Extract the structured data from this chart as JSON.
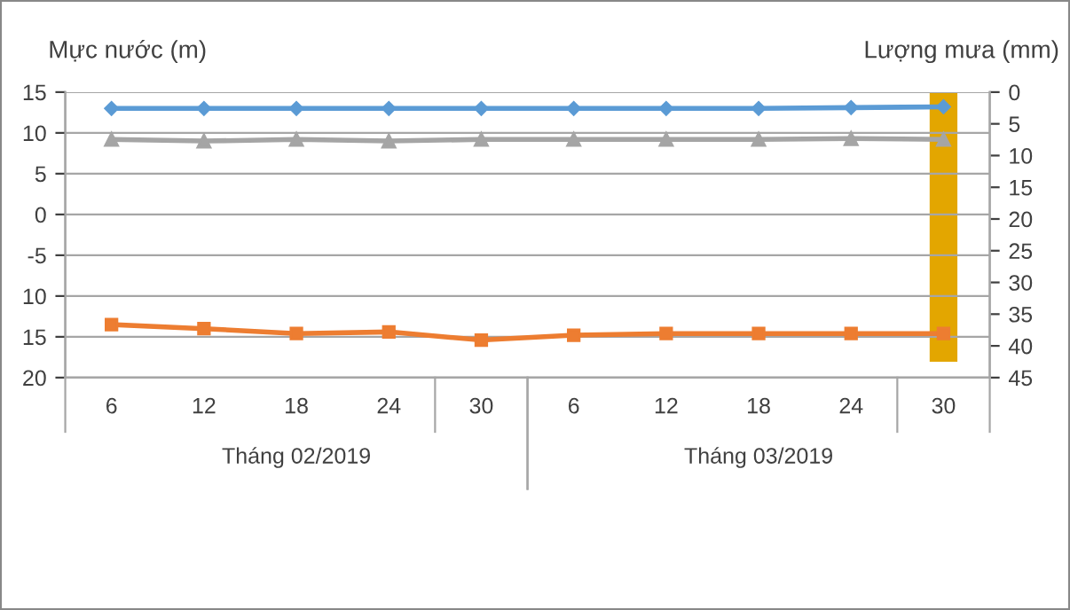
{
  "chart_data": {
    "type": "line",
    "ylabel": "Mực nước (m)",
    "y2label": "Lượng mưa (mm)",
    "categories": [
      "6",
      "12",
      "18",
      "24",
      "30",
      "6",
      "12",
      "18",
      "24",
      "30"
    ],
    "series": [
      {
        "type": "bar",
        "axis": "y2",
        "color": "#e3a600",
        "values": [
          0,
          0,
          0,
          0,
          0,
          0,
          0,
          0,
          0,
          42.5
        ]
      },
      {
        "color": "#5b9bd5",
        "marker": "diamond",
        "values": [
          13.0,
          13.0,
          13.0,
          13.0,
          13.0,
          13.0,
          13.0,
          13.0,
          13.1,
          13.2
        ]
      },
      {
        "color": "#ed7d31",
        "marker": "square",
        "values": [
          -13.5,
          -14.0,
          -14.6,
          -14.4,
          -15.4,
          -14.8,
          -14.6,
          -14.6,
          -14.6,
          -14.6
        ]
      },
      {
        "color": "#a5a5a5",
        "marker": "triangle",
        "values": [
          9.2,
          9.0,
          9.2,
          9.0,
          9.2,
          9.2,
          9.2,
          9.2,
          9.3,
          9.2
        ]
      }
    ],
    "ylim": [
      -20,
      15
    ],
    "yticks": [
      15,
      10,
      5,
      0,
      -5,
      {
        "value": -10,
        "label": "10"
      },
      {
        "value": -15,
        "label": "15"
      },
      {
        "value": -20,
        "label": "20"
      }
    ],
    "y2lim": [
      45,
      0
    ],
    "y2ticks": [
      0,
      5,
      10,
      15,
      20,
      25,
      30,
      35,
      40,
      45
    ],
    "grid": "y",
    "legend": false,
    "annotations": [
      "Tháng 02/2019",
      "Tháng 03/2019"
    ]
  }
}
